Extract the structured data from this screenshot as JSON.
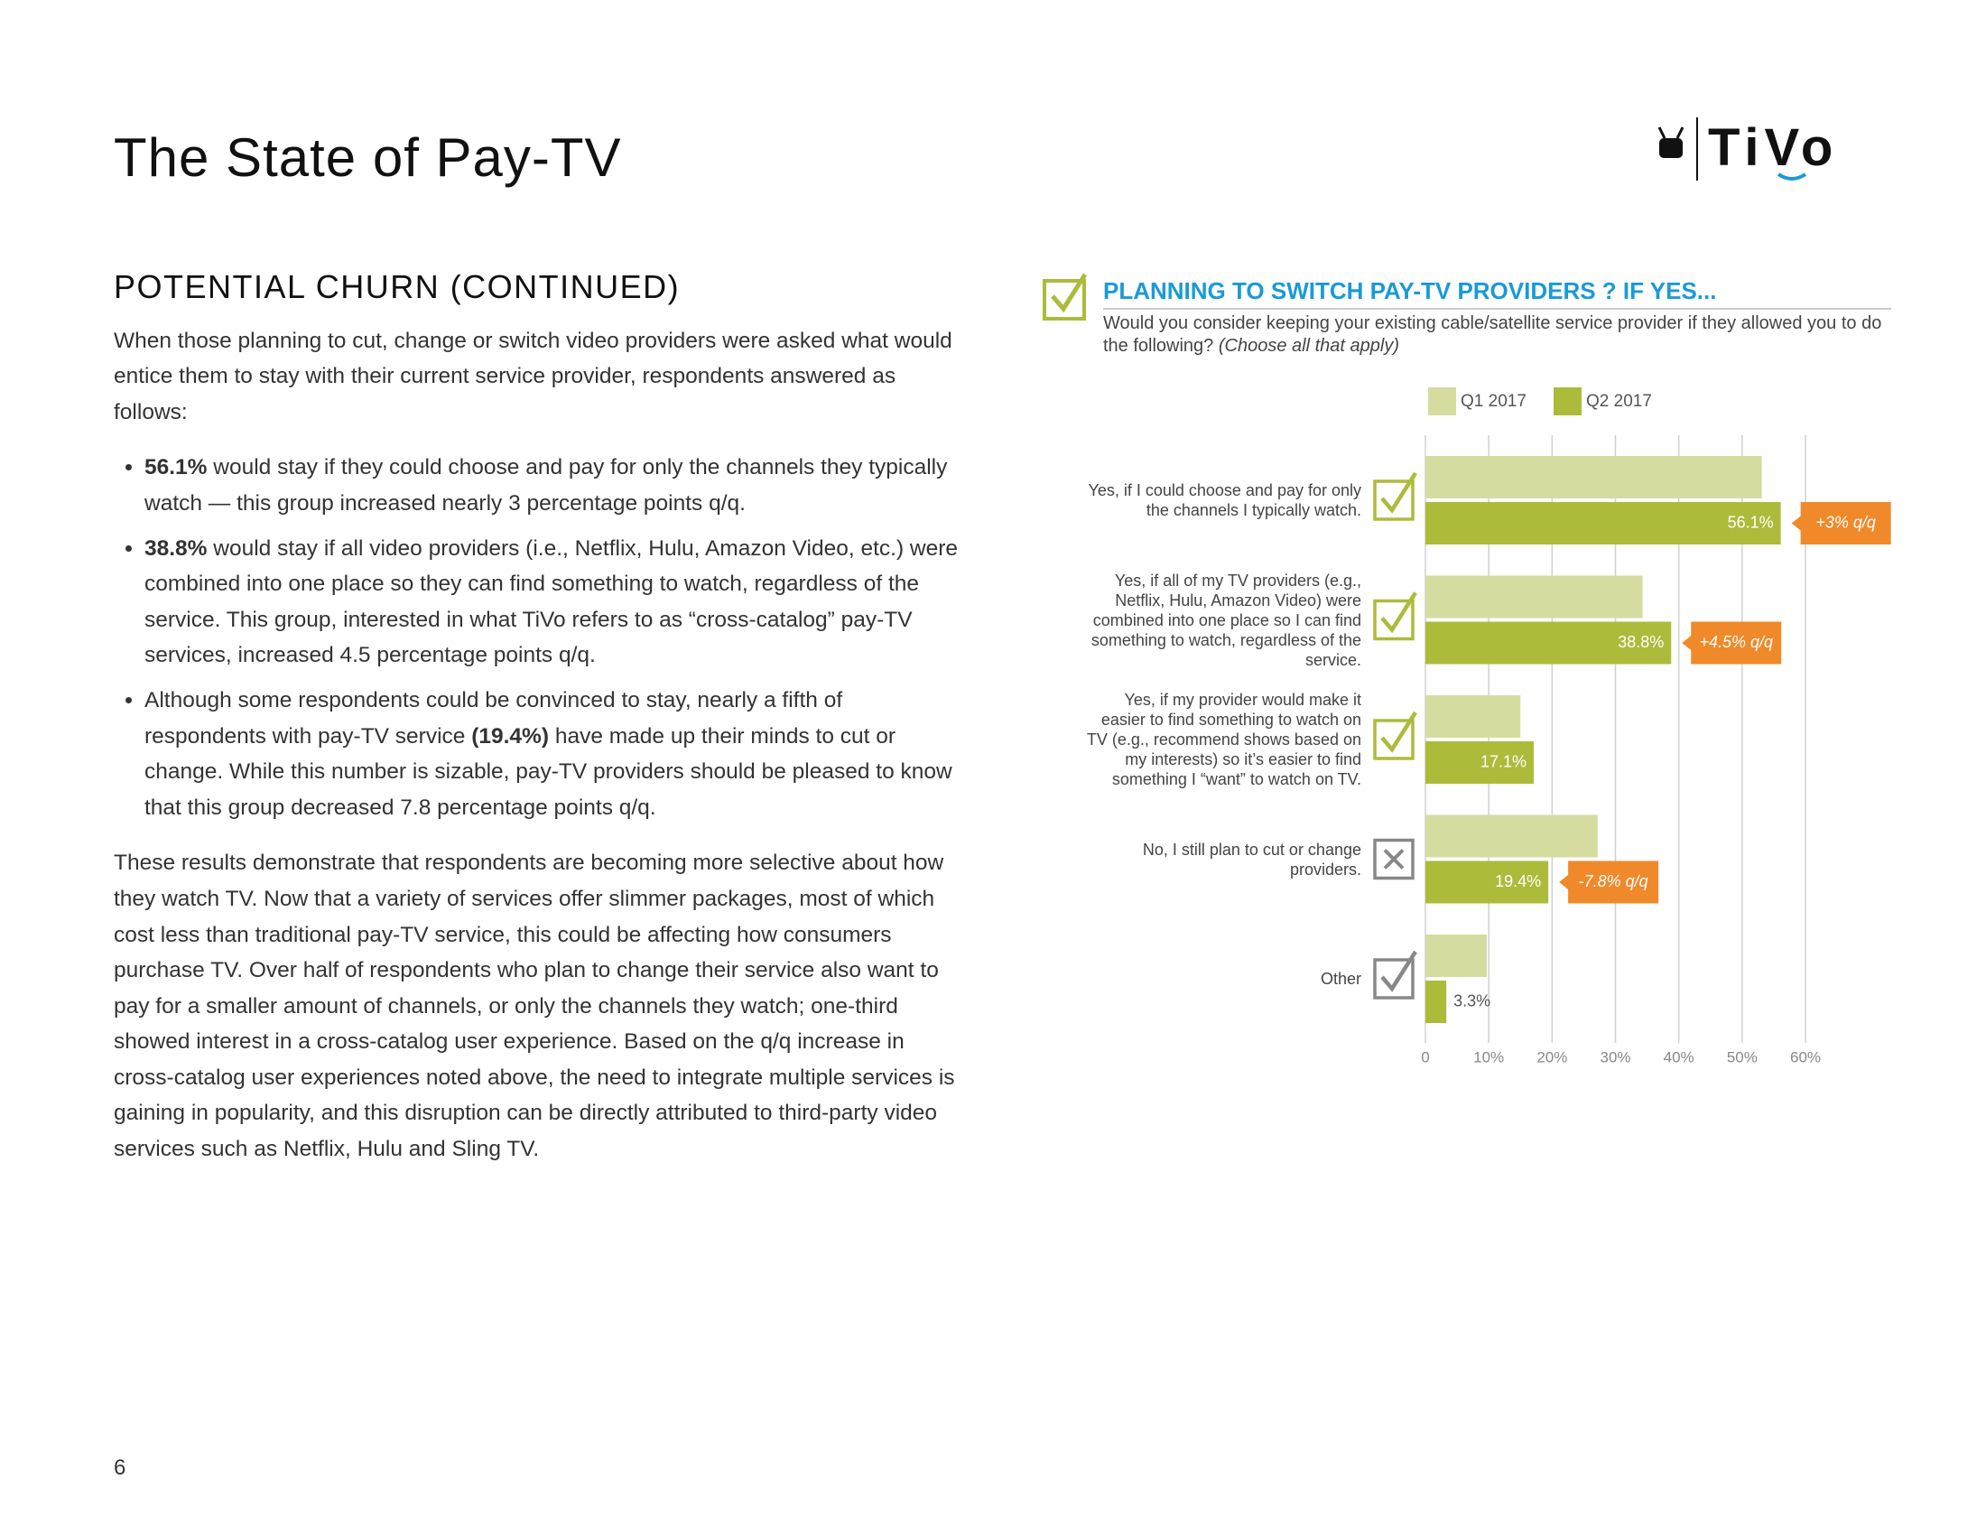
{
  "header": {
    "title": "The State of Pay-TV",
    "logo": "TiVo"
  },
  "section": {
    "heading": "POTENTIAL CHURN (CONTINUED)",
    "intro": "When those planning to cut, change or switch video providers were asked what would entice them to stay with their current service provider, respondents answered as follows:",
    "bullets": [
      {
        "bold": "56.1%",
        "after": " would stay if they could choose and pay for only the channels they typically watch — this group increased nearly 3 percentage points q/q."
      },
      {
        "bold": "38.8%",
        "after": " would stay if all video providers (i.e., Netflix, Hulu, Amazon Video, etc.) were combined into one place so they can find something to watch, regardless of the service. This group, interested in what TiVo refers to as “cross-catalog” pay-TV services, increased 4.5 percentage points q/q."
      },
      {
        "before": "Although some respondents could be convinced to stay, nearly a fifth of respondents with pay-TV service ",
        "bold": "(19.4%)",
        "after": " have made up their minds to cut or change. While this number is sizable, pay-TV providers should be pleased to know that this group decreased 7.8 percentage points q/q."
      }
    ],
    "conclusion": "These results demonstrate that respondents are becoming more selective about how they watch TV. Now that a variety of services offer slimmer packages, most of which cost less than traditional pay-TV service, this could be affecting how consumers purchase TV. Over half of respondents who plan to change their service also want to pay for a smaller amount of channels, or only the channels they watch; one-third showed interest in a cross-catalog user experience. Based on the q/q increase in cross-catalog user experiences noted above, the need to integrate multiple services is gaining in popularity, and this disruption can be directly attributed to third-party video services such as Netflix, Hulu and Sling TV."
  },
  "footer": {
    "page": "6"
  },
  "chart_data": {
    "type": "hbar",
    "title": "PLANNING TO SWITCH PAY-TV PROVIDERS ? IF YES...",
    "subtitle": "Would you consider keeping your existing cable/satellite service provider if they allowed you to do the following?",
    "subtitle_note": "(Choose all that apply)",
    "categories": [
      "Yes, if I could choose and pay for only the channels I typically watch.",
      "Yes, if all of my TV providers (e.g., Netflix, Hulu, Amazon Video) were combined into one place so I can find something to watch, regardless of the service.",
      "Yes, if my provider would make it easier to find something to watch on TV (e.g., recommend shows based on my interests) so it’s easier to find something I “want” to watch on TV.",
      "No, I still plan to cut or change providers.",
      "Other"
    ],
    "series": [
      {
        "name": "Q1 2017",
        "color": "#d6dca0",
        "values": [
          53.1,
          34.3,
          15.0,
          27.2,
          9.7
        ]
      },
      {
        "name": "Q2 2017",
        "color": "#adbb3b",
        "values": [
          56.1,
          38.8,
          17.1,
          19.4,
          3.3
        ],
        "value_labels": [
          "56.1%",
          "38.8%",
          "17.1%",
          "19.4%",
          "3.3%"
        ]
      }
    ],
    "annotations": [
      "+3% q/q",
      "+4.5% q/q",
      null,
      "-7.8% q/q",
      null
    ],
    "annotation_color": "#f0892a",
    "xlim": [
      0,
      60
    ],
    "xticks": [
      0,
      {
        "value": 10,
        "label": "10%"
      },
      {
        "value": 20,
        "label": "20%"
      },
      {
        "value": 30,
        "label": "30%"
      },
      {
        "value": 40,
        "label": "40%"
      },
      {
        "value": 50,
        "label": "50%"
      },
      {
        "value": 60,
        "label": "60%"
      }
    ],
    "grid": true,
    "legend": "top"
  }
}
